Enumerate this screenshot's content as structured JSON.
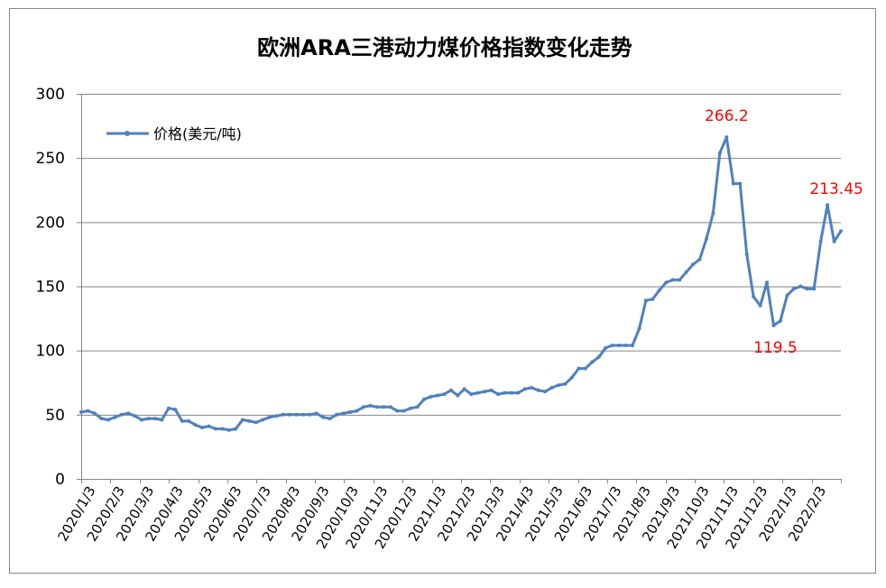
{
  "chart_data": {
    "type": "line",
    "title": "欧洲ARA三港动力煤价格指数变化走势",
    "ylim": [
      0,
      300
    ],
    "yticks": [
      0,
      50,
      100,
      150,
      200,
      250,
      300
    ],
    "grid": true,
    "legend_position": "top-left",
    "x_tick_labels": [
      "2020/1/3",
      "2020/2/3",
      "2020/3/3",
      "2020/4/3",
      "2020/5/3",
      "2020/6/3",
      "2020/7/3",
      "2020/8/3",
      "2020/9/3",
      "2020/10/3",
      "2020/11/3",
      "2020/12/3",
      "2021/1/3",
      "2021/2/3",
      "2021/3/3",
      "2021/4/3",
      "2021/5/3",
      "2021/6/3",
      "2021/7/3",
      "2021/8/3",
      "2021/9/3",
      "2021/10/3",
      "2021/11/3",
      "2021/12/3",
      "2022/1/3",
      "2022/2/3"
    ],
    "series": [
      {
        "name": "价格(美元/吨)",
        "color": "#4F81BD",
        "values": [
          52,
          53,
          51,
          47,
          46,
          48,
          50,
          51,
          49,
          46,
          47,
          47,
          46,
          55,
          54,
          45,
          45,
          42,
          40,
          41,
          39,
          39,
          38,
          39,
          46,
          45,
          44,
          46,
          48,
          49,
          50,
          50,
          50,
          50,
          50,
          51,
          48,
          47,
          50,
          51,
          52,
          53,
          56,
          57,
          56,
          56,
          56,
          53,
          53,
          55,
          56,
          62,
          64,
          65,
          66,
          69,
          65,
          70,
          66,
          67,
          68,
          69,
          66,
          67,
          67,
          67,
          70,
          71,
          69,
          68,
          71,
          73,
          74,
          79,
          86,
          86,
          91,
          95,
          102,
          104,
          104,
          104,
          104,
          117,
          139,
          140,
          147,
          153,
          155,
          155,
          161,
          167,
          171,
          187,
          207,
          254,
          266.2,
          230,
          230,
          175,
          142,
          135,
          153,
          119.5,
          123,
          143,
          148,
          150,
          148,
          148,
          185,
          213.45,
          185,
          193
        ]
      }
    ],
    "annotations": [
      {
        "index": 96,
        "value": 266.2,
        "text": "266.2",
        "color": "#FF0000"
      },
      {
        "index": 111,
        "value": 213.45,
        "text": "213.45",
        "color": "#FF0000"
      },
      {
        "index": 103,
        "value": 119.5,
        "text": "119.5",
        "color": "#FF0000"
      }
    ]
  }
}
